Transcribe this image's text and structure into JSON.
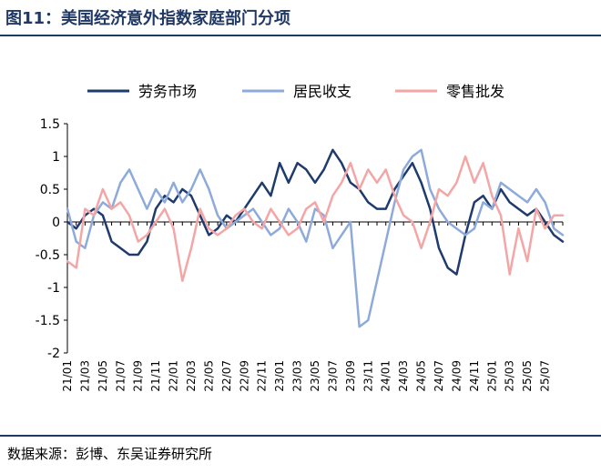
{
  "figure": {
    "title": "图11：美国经济意外指数家庭部门分项",
    "source": "数据来源：彭博、东吴证券研究所"
  },
  "chart_data": {
    "type": "line",
    "x": [
      "21/01",
      "21/02",
      "21/03",
      "21/04",
      "21/05",
      "21/06",
      "21/07",
      "21/08",
      "21/09",
      "21/10",
      "21/11",
      "21/12",
      "22/01",
      "22/02",
      "22/03",
      "22/04",
      "22/05",
      "22/06",
      "22/07",
      "22/08",
      "22/09",
      "22/10",
      "22/11",
      "22/12",
      "23/01",
      "23/02",
      "23/03",
      "23/04",
      "23/05",
      "23/06",
      "23/07",
      "23/08",
      "23/09",
      "23/10",
      "23/11",
      "23/12",
      "24/01",
      "24/02",
      "24/03",
      "24/04",
      "24/05",
      "24/06",
      "24/07",
      "24/08",
      "24/09",
      "24/10",
      "24/11",
      "24/12",
      "25/01",
      "25/02",
      "25/03",
      "25/04",
      "25/05",
      "25/06",
      "25/07",
      "25/08",
      "25/09"
    ],
    "xticks": [
      "21/01",
      "21/03",
      "21/05",
      "21/07",
      "21/09",
      "21/11",
      "22/01",
      "22/03",
      "22/05",
      "22/07",
      "22/09",
      "22/11",
      "23/01",
      "23/03",
      "23/05",
      "23/07",
      "23/09",
      "23/11",
      "24/01",
      "24/03",
      "24/05",
      "24/07",
      "24/09",
      "24/11",
      "25/01",
      "25/03",
      "25/05",
      "25/07"
    ],
    "yticks": [
      "1.5",
      "1",
      "0.5",
      "0",
      "-0.5",
      "-1",
      "-1.5",
      "-2"
    ],
    "ylim": [
      -2,
      1.5
    ],
    "legend_position": "top",
    "grid": false,
    "series": [
      {
        "name": "劳务市场",
        "color": "#1f3b6e",
        "values": [
          0.0,
          -0.1,
          0.1,
          0.2,
          0.1,
          -0.3,
          -0.4,
          -0.5,
          -0.5,
          -0.3,
          0.2,
          0.4,
          0.3,
          0.5,
          0.4,
          0.1,
          -0.2,
          -0.1,
          0.1,
          0.0,
          0.2,
          0.4,
          0.6,
          0.4,
          0.9,
          0.6,
          0.9,
          0.8,
          0.6,
          0.8,
          1.1,
          0.9,
          0.6,
          0.5,
          0.3,
          0.2,
          0.2,
          0.5,
          0.7,
          0.9,
          0.6,
          0.2,
          -0.4,
          -0.7,
          -0.8,
          -0.2,
          0.3,
          0.4,
          0.2,
          0.5,
          0.3,
          0.2,
          0.1,
          0.2,
          0.0,
          -0.2,
          -0.3
        ]
      },
      {
        "name": "居民收支",
        "color": "#8eaadb",
        "values": [
          0.2,
          -0.3,
          -0.4,
          0.1,
          0.3,
          0.2,
          0.6,
          0.8,
          0.5,
          0.2,
          0.5,
          0.3,
          0.6,
          0.3,
          0.5,
          0.8,
          0.5,
          0.1,
          -0.1,
          0.0,
          0.1,
          0.2,
          0.0,
          -0.2,
          -0.1,
          0.2,
          0.0,
          -0.3,
          0.2,
          0.1,
          -0.4,
          -0.2,
          0.0,
          -1.6,
          -1.5,
          -0.9,
          -0.3,
          0.3,
          0.8,
          1.0,
          1.1,
          0.5,
          0.2,
          0.0,
          -0.1,
          -0.2,
          -0.1,
          0.3,
          0.2,
          0.6,
          0.5,
          0.4,
          0.3,
          0.5,
          0.3,
          -0.1,
          -0.2
        ]
      },
      {
        "name": "零售批发",
        "color": "#f4a6a6",
        "values": [
          -0.6,
          -0.7,
          0.2,
          0.1,
          0.5,
          0.2,
          0.3,
          0.1,
          -0.3,
          -0.2,
          0.0,
          0.2,
          -0.1,
          -0.9,
          -0.4,
          0.2,
          -0.1,
          -0.2,
          -0.1,
          0.1,
          0.2,
          0.0,
          -0.1,
          0.2,
          0.0,
          -0.2,
          -0.1,
          0.2,
          0.3,
          0.0,
          0.4,
          0.6,
          0.9,
          0.5,
          0.8,
          0.6,
          0.8,
          0.4,
          0.1,
          0.0,
          -0.4,
          0.0,
          0.5,
          0.4,
          0.6,
          1.0,
          0.6,
          0.9,
          0.4,
          0.1,
          -0.8,
          -0.1,
          -0.6,
          0.2,
          -0.1,
          0.1,
          0.1
        ]
      }
    ]
  }
}
